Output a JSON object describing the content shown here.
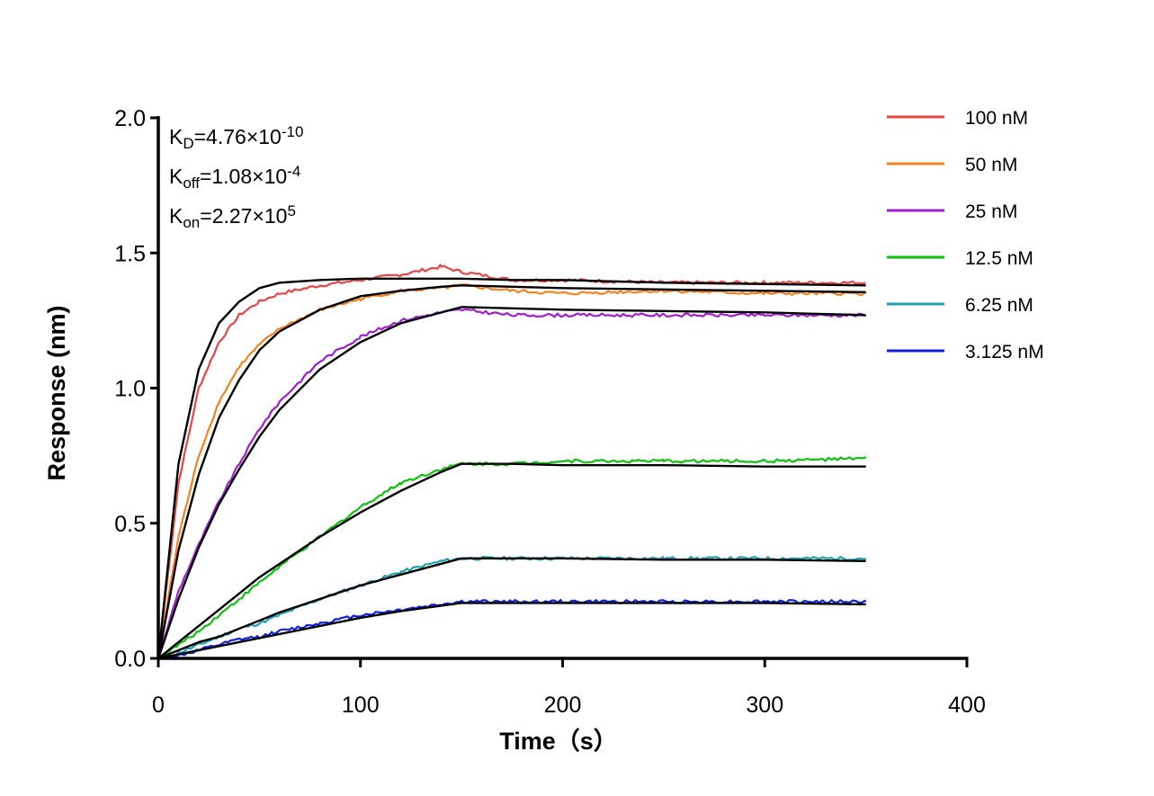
{
  "chart_data": {
    "type": "line",
    "title": "",
    "xlabel": "Time（s）",
    "ylabel": "Response (nm)",
    "xlim": [
      0,
      400
    ],
    "ylim": [
      0,
      2.0
    ],
    "xticks": [
      "0",
      "100",
      "200",
      "300",
      "400"
    ],
    "yticks": [
      "0.0",
      "0.5",
      "1.0",
      "1.5",
      "2.0"
    ],
    "grid": false,
    "legend_position": "top-right",
    "fit_color": "#000000",
    "annotations": [
      {
        "base": "K",
        "sub": "D",
        "mid": "=4.76×10",
        "sup": "-10"
      },
      {
        "base": "K",
        "sub": "off",
        "mid": "=1.08×10",
        "sup": "-4"
      },
      {
        "base": "K",
        "sub": "on",
        "mid": "=2.27×10",
        "sup": "5"
      }
    ],
    "x": [
      0,
      10,
      20,
      30,
      40,
      50,
      60,
      80,
      100,
      120,
      140,
      150,
      175,
      200,
      250,
      300,
      350
    ],
    "series": [
      {
        "name": "100 nM",
        "color": "#e84545",
        "measured": [
          0,
          0.65,
          1.0,
          1.17,
          1.27,
          1.32,
          1.35,
          1.38,
          1.4,
          1.42,
          1.45,
          1.43,
          1.4,
          1.4,
          1.39,
          1.39,
          1.39
        ],
        "fit": [
          0,
          0.72,
          1.07,
          1.24,
          1.32,
          1.37,
          1.39,
          1.4,
          1.405,
          1.405,
          1.405,
          1.405,
          1.4,
          1.4,
          1.39,
          1.385,
          1.38
        ]
      },
      {
        "name": "50 nM",
        "color": "#f58220",
        "measured": [
          0,
          0.45,
          0.75,
          0.95,
          1.08,
          1.16,
          1.22,
          1.29,
          1.33,
          1.36,
          1.37,
          1.38,
          1.36,
          1.35,
          1.36,
          1.35,
          1.35
        ],
        "fit": [
          0,
          0.4,
          0.68,
          0.89,
          1.03,
          1.14,
          1.21,
          1.29,
          1.34,
          1.36,
          1.375,
          1.38,
          1.375,
          1.37,
          1.365,
          1.36,
          1.355
        ]
      },
      {
        "name": "25 nM",
        "color": "#a020d0",
        "measured": [
          0,
          0.25,
          0.42,
          0.58,
          0.72,
          0.85,
          0.95,
          1.1,
          1.19,
          1.25,
          1.28,
          1.29,
          1.27,
          1.27,
          1.27,
          1.27,
          1.27
        ],
        "fit": [
          0,
          0.22,
          0.41,
          0.57,
          0.7,
          0.82,
          0.92,
          1.07,
          1.17,
          1.24,
          1.28,
          1.3,
          1.295,
          1.29,
          1.285,
          1.28,
          1.27
        ]
      },
      {
        "name": "12.5 nM",
        "color": "#10c010",
        "measured": [
          0,
          0.05,
          0.1,
          0.16,
          0.22,
          0.28,
          0.34,
          0.45,
          0.56,
          0.65,
          0.7,
          0.72,
          0.72,
          0.73,
          0.73,
          0.73,
          0.74
        ],
        "fit": [
          0,
          0.06,
          0.12,
          0.18,
          0.24,
          0.3,
          0.35,
          0.45,
          0.54,
          0.62,
          0.69,
          0.72,
          0.72,
          0.715,
          0.715,
          0.71,
          0.71
        ]
      },
      {
        "name": "6.25 nM",
        "color": "#20a0b0",
        "measured": [
          0,
          0.02,
          0.05,
          0.08,
          0.11,
          0.13,
          0.16,
          0.22,
          0.27,
          0.32,
          0.36,
          0.37,
          0.37,
          0.37,
          0.37,
          0.37,
          0.37
        ],
        "fit": [
          0,
          0.03,
          0.06,
          0.08,
          0.11,
          0.14,
          0.17,
          0.22,
          0.27,
          0.31,
          0.35,
          0.37,
          0.37,
          0.37,
          0.365,
          0.365,
          0.36
        ]
      },
      {
        "name": "3.125 nM",
        "color": "#1020e0",
        "measured": [
          0,
          0.01,
          0.03,
          0.05,
          0.07,
          0.08,
          0.1,
          0.13,
          0.16,
          0.18,
          0.2,
          0.21,
          0.21,
          0.21,
          0.21,
          0.21,
          0.21
        ],
        "fit": [
          0,
          0.015,
          0.03,
          0.045,
          0.06,
          0.075,
          0.09,
          0.12,
          0.15,
          0.175,
          0.195,
          0.205,
          0.205,
          0.205,
          0.205,
          0.205,
          0.2
        ]
      }
    ]
  }
}
